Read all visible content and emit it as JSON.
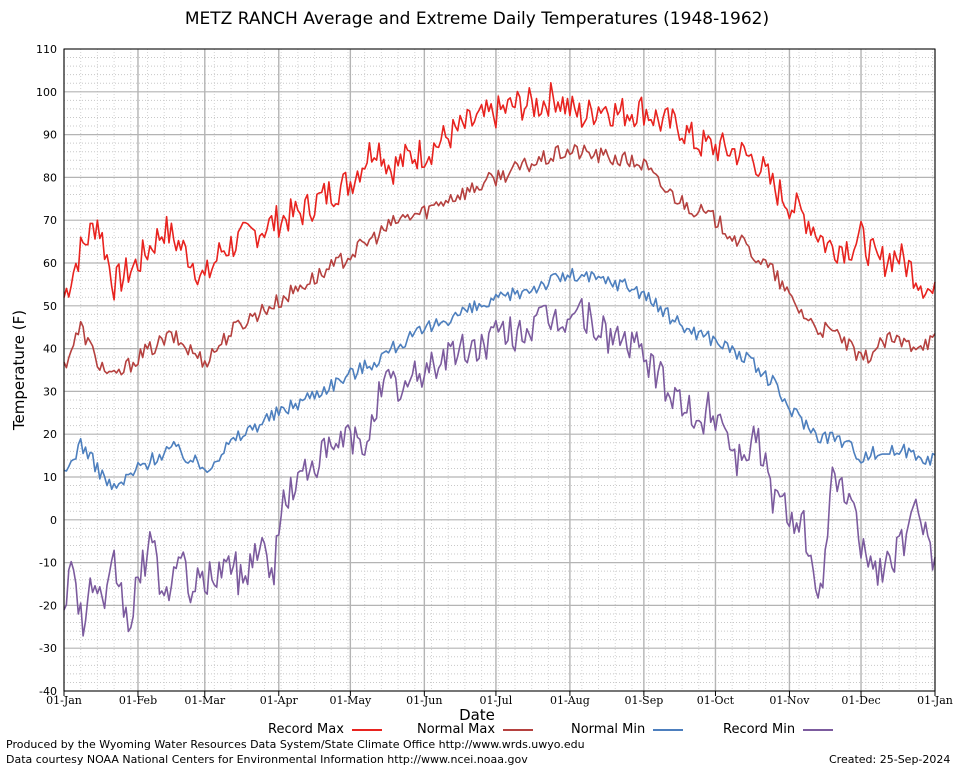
{
  "chart_data": {
    "type": "line",
    "title": "METZ RANCH Average and Extreme Daily Temperatures (1948-1962)",
    "xlabel": "Date",
    "ylabel": "Temperature (F)",
    "ylim": [
      -40,
      110
    ],
    "yticks": [
      -40,
      -30,
      -20,
      -10,
      0,
      10,
      20,
      30,
      40,
      50,
      60,
      70,
      80,
      90,
      100,
      110
    ],
    "xlim_days": [
      0,
      365
    ],
    "xticks": [
      {
        "label": "01-Jan",
        "day": 0
      },
      {
        "label": "01-Feb",
        "day": 31
      },
      {
        "label": "01-Mar",
        "day": 59
      },
      {
        "label": "01-Apr",
        "day": 90
      },
      {
        "label": "01-May",
        "day": 120
      },
      {
        "label": "01-Jun",
        "day": 151
      },
      {
        "label": "01-Jul",
        "day": 181
      },
      {
        "label": "01-Aug",
        "day": 212
      },
      {
        "label": "01-Sep",
        "day": 243
      },
      {
        "label": "01-Oct",
        "day": 273
      },
      {
        "label": "01-Nov",
        "day": 304
      },
      {
        "label": "01-Dec",
        "day": 334
      },
      {
        "label": "01-Jan",
        "day": 365
      }
    ],
    "grid": true,
    "legend_position": "bottom",
    "series": [
      {
        "name": "Record Max",
        "color": "#e8231f",
        "x_days": [
          0,
          7,
          14,
          21,
          31,
          42,
          52,
          59,
          66,
          76,
          90,
          100,
          110,
          120,
          127,
          131,
          137,
          145,
          152,
          162,
          172,
          181,
          190,
          199,
          206,
          212,
          218,
          225,
          232,
          243,
          250,
          258,
          265,
          273,
          282,
          290,
          297,
          304,
          312,
          320,
          330,
          334,
          341,
          349,
          356,
          365
        ],
        "values": [
          52,
          63,
          70,
          55,
          60,
          68,
          62,
          56,
          63,
          66,
          70,
          72,
          76,
          79,
          85,
          88,
          82,
          85,
          86,
          90,
          93,
          95,
          97,
          97,
          99,
          96,
          94,
          97,
          95,
          96,
          93,
          92,
          88,
          87,
          86,
          84,
          78,
          74,
          70,
          64,
          64,
          66,
          60,
          62,
          58,
          52
        ]
      },
      {
        "name": "Normal Max",
        "color": "#b5413f",
        "x_days": [
          0,
          7,
          14,
          21,
          31,
          45,
          59,
          70,
          80,
          90,
          100,
          110,
          120,
          130,
          140,
          151,
          160,
          170,
          181,
          190,
          200,
          210,
          215,
          225,
          235,
          243,
          250,
          260,
          273,
          285,
          297,
          304,
          310,
          315,
          325,
          334,
          345,
          355,
          365
        ],
        "values": [
          36,
          45,
          37,
          33,
          38,
          43,
          37,
          44,
          48,
          51,
          55,
          58,
          62,
          66,
          70,
          72,
          75,
          77,
          80,
          82,
          84,
          86,
          86,
          85,
          84,
          83,
          78,
          74,
          70,
          64,
          58,
          52,
          48,
          45,
          43,
          37,
          42,
          41,
          42
        ]
      },
      {
        "name": "Normal Min",
        "color": "#4d7fbe",
        "x_days": [
          0,
          7,
          14,
          21,
          31,
          45,
          59,
          70,
          80,
          90,
          100,
          110,
          120,
          130,
          140,
          151,
          160,
          170,
          181,
          190,
          200,
          210,
          215,
          225,
          235,
          243,
          250,
          260,
          273,
          285,
          297,
          304,
          310,
          315,
          325,
          334,
          345,
          355,
          365
        ],
        "values": [
          10,
          18,
          12,
          7,
          12,
          17,
          12,
          18,
          22,
          25,
          28,
          31,
          34,
          37,
          41,
          44,
          47,
          49,
          51,
          53,
          55,
          57,
          57,
          56,
          55,
          53,
          49,
          45,
          42,
          38,
          32,
          26,
          23,
          20,
          19,
          15,
          16,
          16,
          14
        ]
      },
      {
        "name": "Record Min",
        "color": "#7c5b9e",
        "x_days": [
          0,
          4,
          8,
          12,
          17,
          21,
          27,
          31,
          36,
          42,
          48,
          54,
          59,
          64,
          70,
          75,
          81,
          88,
          92,
          97,
          105,
          110,
          116,
          120,
          125,
          130,
          136,
          142,
          151,
          156,
          162,
          172,
          181,
          190,
          200,
          210,
          216,
          225,
          235,
          243,
          248,
          252,
          260,
          265,
          270,
          276,
          282,
          290,
          297,
          304,
          310,
          316,
          322,
          328,
          334,
          340,
          346,
          352,
          358,
          362,
          365
        ],
        "values": [
          -18,
          -10,
          -25,
          -14,
          -23,
          -10,
          -25,
          -15,
          -5,
          -18,
          -10,
          -16,
          -15,
          -12,
          -10,
          -15,
          -5,
          -12,
          5,
          8,
          14,
          15,
          18,
          20,
          15,
          27,
          32,
          30,
          35,
          37,
          39,
          40,
          43,
          44,
          46,
          47,
          49,
          44,
          42,
          38,
          35,
          30,
          28,
          20,
          26,
          24,
          14,
          20,
          6,
          2,
          0,
          -22,
          8,
          6,
          -5,
          -12,
          -10,
          -5,
          2,
          0,
          -11
        ]
      }
    ]
  },
  "legend": {
    "record_max": "Record Max",
    "normal_max": "Normal Max",
    "normal_min": "Normal Min",
    "record_min": "Record Min"
  },
  "footer": {
    "produced_by": "Produced by the Wyoming Water Resources Data System/State Climate Office http://www.wrds.uwyo.edu",
    "courtesy": "Data courtesy NOAA National Centers for Environmental Information http://www.ncei.noaa.gov",
    "created": "Created:  25-Sep-2024"
  }
}
